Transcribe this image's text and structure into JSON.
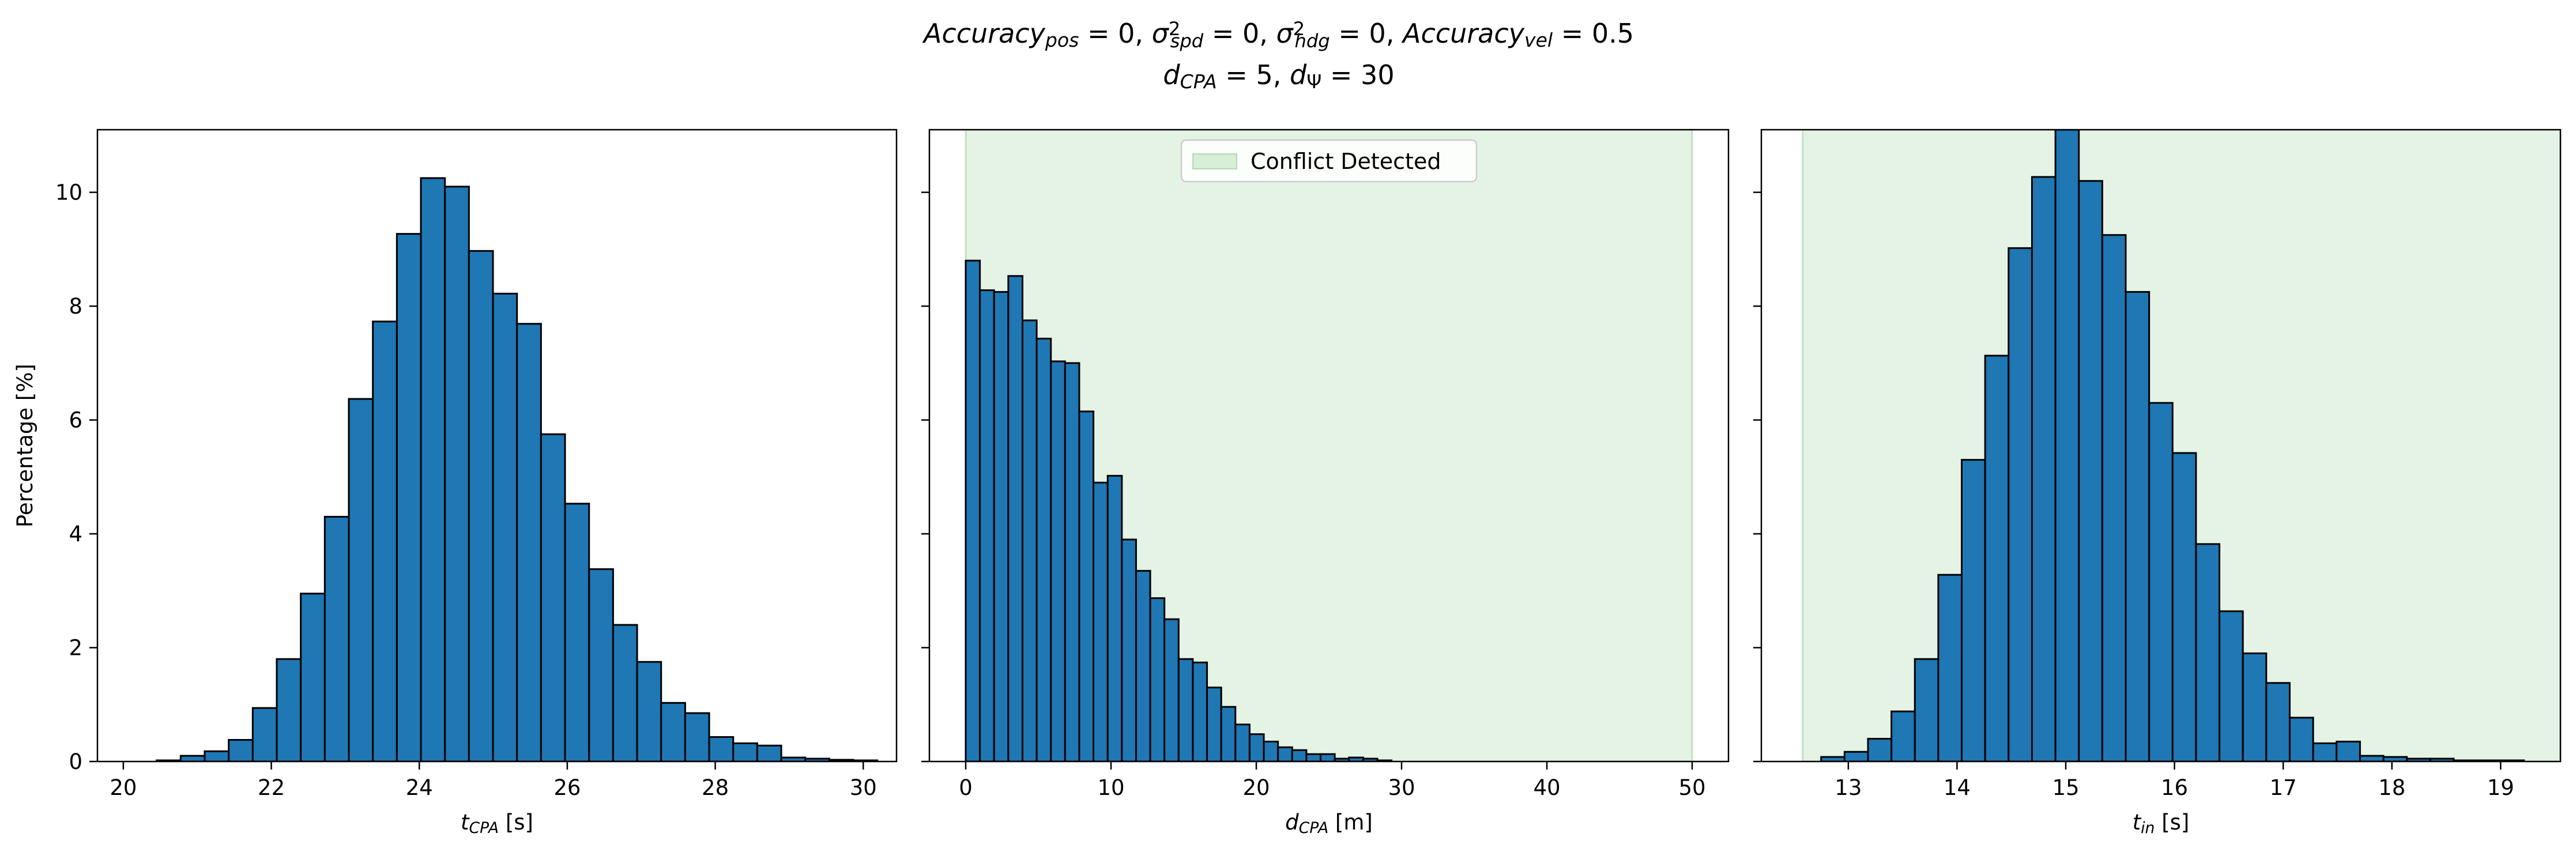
{
  "figure": {
    "title_parts": [
      {
        "t": "Accuracy",
        "s": "it"
      },
      {
        "t": "pos",
        "s": "sub"
      },
      {
        "t": " = 0, ",
        "s": "n"
      },
      {
        "t": "σ",
        "s": "it"
      },
      {
        "t": "2",
        "s": "supsub-sup"
      },
      {
        "t": "spd",
        "s": "supsub-sub"
      },
      {
        "t": " = 0, ",
        "s": "n"
      },
      {
        "t": "σ",
        "s": "it"
      },
      {
        "t": "2",
        "s": "supsub-sup"
      },
      {
        "t": "hdg",
        "s": "supsub-sub"
      },
      {
        "t": " = 0, ",
        "s": "n"
      },
      {
        "t": "Accuracy",
        "s": "it"
      },
      {
        "t": "vel",
        "s": "sub"
      },
      {
        "t": " = 0.5",
        "s": "n"
      }
    ],
    "subtitle_parts": [
      {
        "t": "d",
        "s": "it"
      },
      {
        "t": "CPA",
        "s": "sub"
      },
      {
        "t": " = 5, ",
        "s": "n"
      },
      {
        "t": "d",
        "s": "it"
      },
      {
        "t": "Ψ",
        "s": "sub-up"
      },
      {
        "t": " = 30",
        "s": "n"
      }
    ]
  },
  "colors": {
    "bar_fill": "#1f77b4",
    "bar_edge": "#000000",
    "conflict_fill": "#2ca02c",
    "conflict_opacity": 0.12
  },
  "chart_data": [
    {
      "type": "bar",
      "ylabel": "Percentage [%]",
      "xlabel_parts": [
        {
          "t": "t",
          "s": "it"
        },
        {
          "t": "CPA",
          "s": "sub"
        },
        {
          "t": " [s]",
          "s": "n"
        }
      ],
      "xlim": [
        19.65,
        30.45
      ],
      "ylim": [
        0,
        11.1
      ],
      "xticks": [
        20,
        22,
        24,
        26,
        28,
        30
      ],
      "yticks": [
        0,
        2,
        4,
        6,
        8,
        10
      ],
      "bin_start": 20.45,
      "bin_width": 0.3247,
      "values": [
        0.02,
        0.1,
        0.18,
        0.38,
        0.94,
        1.8,
        2.95,
        4.3,
        6.37,
        7.73,
        9.27,
        10.25,
        10.1,
        8.97,
        8.22,
        7.69,
        5.75,
        4.53,
        3.38,
        2.4,
        1.75,
        1.03,
        0.85,
        0.43,
        0.32,
        0.28,
        0.07,
        0.05,
        0.03,
        0.02
      ]
    },
    {
      "type": "bar",
      "ylabel": "",
      "xlabel_parts": [
        {
          "t": "d",
          "s": "it"
        },
        {
          "t": "CPA",
          "s": "sub"
        },
        {
          "t": " [m]",
          "s": "n"
        }
      ],
      "xlim": [
        -2.5,
        52.5
      ],
      "ylim": [
        0,
        11.1
      ],
      "xticks": [
        0,
        10,
        20,
        30,
        40,
        50
      ],
      "yticks": [
        0,
        2,
        4,
        6,
        8,
        10
      ],
      "bin_start": 0,
      "bin_width": 0.977,
      "values": [
        8.8,
        8.28,
        8.25,
        8.53,
        7.75,
        7.43,
        7.03,
        7.0,
        6.15,
        4.9,
        5.02,
        3.9,
        3.35,
        2.87,
        2.5,
        1.8,
        1.74,
        1.3,
        0.96,
        0.65,
        0.48,
        0.35,
        0.25,
        0.2,
        0.13,
        0.13,
        0.05,
        0.07,
        0.05,
        0.02
      ],
      "shaded_region": {
        "x0": 0,
        "x1": 50,
        "label": "Conflict Detected"
      },
      "legend_position": "upper center"
    },
    {
      "type": "bar",
      "ylabel": "",
      "xlabel_parts": [
        {
          "t": "t",
          "s": "it"
        },
        {
          "t": "in",
          "s": "sub"
        },
        {
          "t": " [s]",
          "s": "n"
        }
      ],
      "xlim": [
        12.2,
        19.55
      ],
      "ylim": [
        0,
        11.1
      ],
      "xticks": [
        13,
        14,
        15,
        16,
        17,
        18,
        19
      ],
      "yticks": [
        0,
        2,
        4,
        6,
        8,
        10
      ],
      "bin_start": 12.75,
      "bin_width": 0.2155,
      "values": [
        0.08,
        0.17,
        0.4,
        0.88,
        1.8,
        3.28,
        5.3,
        7.13,
        9.02,
        10.27,
        11.1,
        10.2,
        9.25,
        8.25,
        6.3,
        5.42,
        3.82,
        2.64,
        1.9,
        1.38,
        0.77,
        0.32,
        0.35,
        0.1,
        0.08,
        0.05,
        0.05,
        0.02,
        0.02,
        0.02
      ],
      "shaded_region": {
        "x0": 12.58,
        "x1": 19.55,
        "label": ""
      }
    }
  ]
}
